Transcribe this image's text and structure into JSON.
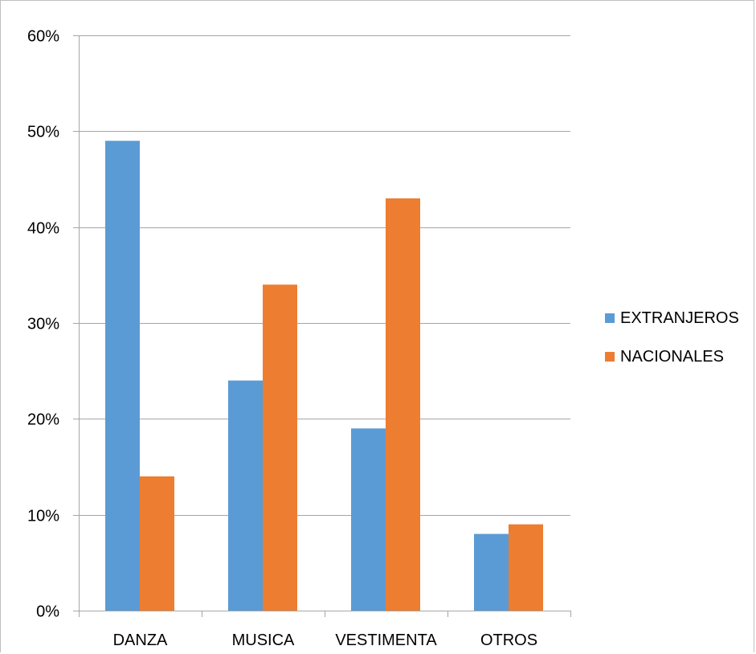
{
  "chart_data": {
    "type": "bar",
    "title": "",
    "xlabel": "",
    "ylabel": "",
    "categories": [
      "DANZA",
      "MUSICA",
      "VESTIMENTA",
      "OTROS"
    ],
    "series": [
      {
        "name": "EXTRANJEROS",
        "values": [
          0.49,
          0.24,
          0.19,
          0.08
        ],
        "color": "#5b9bd5"
      },
      {
        "name": "NACIONALES",
        "values": [
          0.14,
          0.34,
          0.43,
          0.09
        ],
        "color": "#ed7d31"
      }
    ],
    "ylim": [
      0,
      0.6
    ],
    "yticks": [
      {
        "value": 0,
        "label": "0%"
      },
      {
        "value": 0.1,
        "label": "10%"
      },
      {
        "value": 0.2,
        "label": "20%"
      },
      {
        "value": 0.3,
        "label": "30%"
      },
      {
        "value": 0.4,
        "label": "40%"
      },
      {
        "value": 0.5,
        "label": "50%"
      },
      {
        "value": 0.6,
        "label": "60%"
      }
    ],
    "grid": true,
    "gridline_color": "#a6a6a6",
    "legend_placement": "right"
  }
}
